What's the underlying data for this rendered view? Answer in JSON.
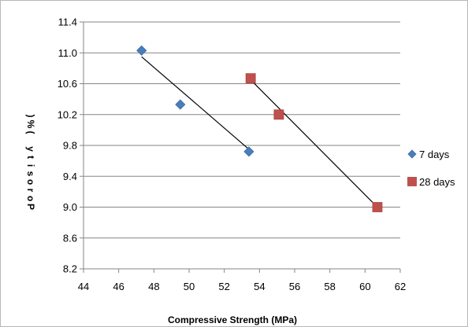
{
  "chart_data": {
    "type": "scatter",
    "xlabel": "Compressive Strength (MPa)",
    "ylabel": "Porosity (%)",
    "xlim": [
      44,
      62
    ],
    "ylim": [
      8.2,
      11.4
    ],
    "x_ticks": [
      "44",
      "46",
      "48",
      "50",
      "52",
      "54",
      "56",
      "58",
      "60",
      "62"
    ],
    "y_ticks": [
      "8.2",
      "8.6",
      "9.0",
      "9.4",
      "9.8",
      "10.2",
      "10.6",
      "11.0",
      "11.4"
    ],
    "grid": "horizontal",
    "legend_position": "right",
    "series": [
      {
        "name": "7 days",
        "marker": "diamond",
        "color": "#4a7ebb",
        "points": [
          [
            47.3,
            11.03
          ],
          [
            49.5,
            10.33
          ],
          [
            53.4,
            9.72
          ]
        ],
        "trendline": [
          [
            47.3,
            10.95
          ],
          [
            53.4,
            9.75
          ]
        ]
      },
      {
        "name": "28 days",
        "marker": "square",
        "color": "#c0504d",
        "points": [
          [
            53.5,
            10.67
          ],
          [
            55.1,
            10.2
          ],
          [
            60.7,
            9.0
          ]
        ],
        "trendline": [
          [
            53.5,
            10.65
          ],
          [
            60.7,
            9.0
          ]
        ]
      }
    ]
  }
}
